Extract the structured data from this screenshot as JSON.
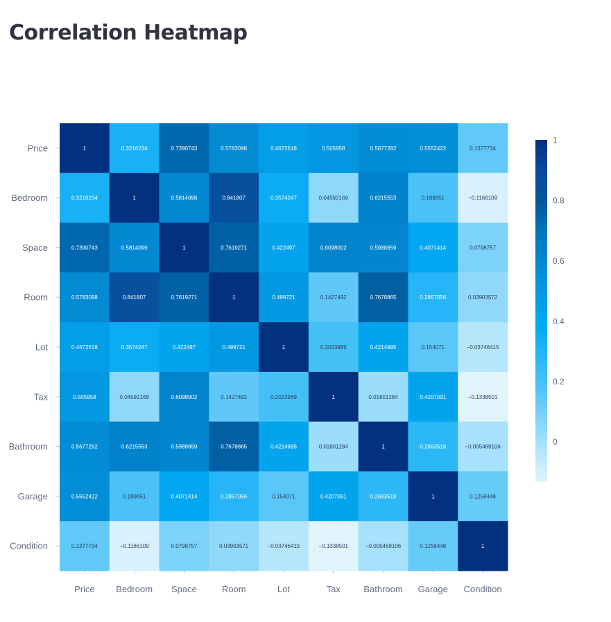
{
  "page": {
    "title": "Correlation Heatmap"
  },
  "chart_data": {
    "type": "heatmap",
    "title": "",
    "xlabel": "",
    "ylabel": "",
    "x": [
      "Price",
      "Bedroom",
      "Space",
      "Room",
      "Lot",
      "Tax",
      "Bathroom",
      "Garage",
      "Condition"
    ],
    "y": [
      "Price",
      "Bedroom",
      "Space",
      "Room",
      "Lot",
      "Tax",
      "Bathroom",
      "Garage",
      "Condition"
    ],
    "z": [
      [
        1,
        0.3216234,
        0.7390743,
        0.5783098,
        0.4672618,
        0.505958,
        0.5677292,
        0.5552422,
        0.1377734
      ],
      [
        0.3216234,
        1,
        0.5814096,
        0.841807,
        0.3574247,
        0.04592169,
        0.6215553,
        0.189651,
        -0.1166109
      ],
      [
        0.7390743,
        0.5814096,
        1,
        0.7619271,
        0.422497,
        0.6098002,
        0.5988659,
        0.4071414,
        0.0798757
      ],
      [
        0.5783098,
        0.841807,
        0.7619271,
        1,
        0.499721,
        0.1427492,
        0.7678865,
        0.2857056,
        0.03903572
      ],
      [
        0.4672618,
        0.3574247,
        0.422497,
        0.499721,
        1,
        0.2023969,
        0.4214995,
        0.154071,
        -0.03746415
      ],
      [
        0.505958,
        0.04592169,
        0.6098002,
        0.1427492,
        0.2023969,
        1,
        0.01801284,
        0.4207091,
        -0.1338501
      ],
      [
        0.5677292,
        0.6215553,
        0.5988659,
        0.7678865,
        0.4214995,
        0.01801284,
        1,
        0.2693518,
        -0.005469106
      ],
      [
        0.5552422,
        0.189651,
        0.4071414,
        0.2857056,
        0.154071,
        0.4207091,
        0.2693518,
        1,
        0.1256448
      ],
      [
        0.1377734,
        -0.1166109,
        0.0798757,
        0.03903572,
        -0.03746415,
        -0.1338501,
        -0.005469106,
        0.1256448,
        1
      ]
    ],
    "text": [
      [
        "1",
        "0.3216234",
        "0.7390743",
        "0.5783098",
        "0.4672618",
        "0.505958",
        "0.5677292",
        "0.5552422",
        "0.1377734"
      ],
      [
        "0.3216234",
        "1",
        "0.5814096",
        "0.841807",
        "0.3574247",
        "0.04592169",
        "0.6215553",
        "0.189651",
        "−0.1166109"
      ],
      [
        "0.7390743",
        "0.5814096",
        "1",
        "0.7619271",
        "0.422497",
        "0.6098002",
        "0.5988659",
        "0.4071414",
        "0.0798757"
      ],
      [
        "0.5783098",
        "0.841807",
        "0.7619271",
        "1",
        "0.499721",
        "0.1427492",
        "0.7678865",
        "0.2857056",
        "0.03903572"
      ],
      [
        "0.4672618",
        "0.3574247",
        "0.422497",
        "0.499721",
        "1",
        "0.2023969",
        "0.4214995",
        "0.154071",
        "−0.03746415"
      ],
      [
        "0.505958",
        "0.04592169",
        "0.6098002",
        "0.1427492",
        "0.2023969",
        "1",
        "0.01801284",
        "0.4207091",
        "−0.1338501"
      ],
      [
        "0.5677292",
        "0.6215553",
        "0.5988659",
        "0.7678865",
        "0.4214995",
        "0.01801284",
        "1",
        "0.2693518",
        "−0.005469106"
      ],
      [
        "0.5552422",
        "0.189651",
        "0.4071414",
        "0.2857056",
        "0.154071",
        "0.4207091",
        "0.2693518",
        "1",
        "0.1256448"
      ],
      [
        "0.1377734",
        "−0.1166109",
        "0.0798757",
        "0.03903572",
        "−0.03746415",
        "−0.1338501",
        "−0.005469106",
        "0.1256448",
        "1"
      ]
    ],
    "zmin": -0.1338501,
    "zmax": 1,
    "colorbar": {
      "ticks": [
        0,
        0.2,
        0.4,
        0.6,
        0.8,
        1
      ],
      "tick_labels": [
        "0",
        "0.2",
        "0.4",
        "0.6",
        "0.8",
        "1"
      ]
    },
    "colorscale": [
      "#e0f4fc",
      "#b3e5fc",
      "#81d4fa",
      "#4fc3f7",
      "#29b6f6",
      "#03a9f4",
      "#039be5",
      "#0288d1",
      "#0277bd",
      "#01579b",
      "#0d47a1",
      "#023180"
    ],
    "legend": "colorbar-right"
  }
}
